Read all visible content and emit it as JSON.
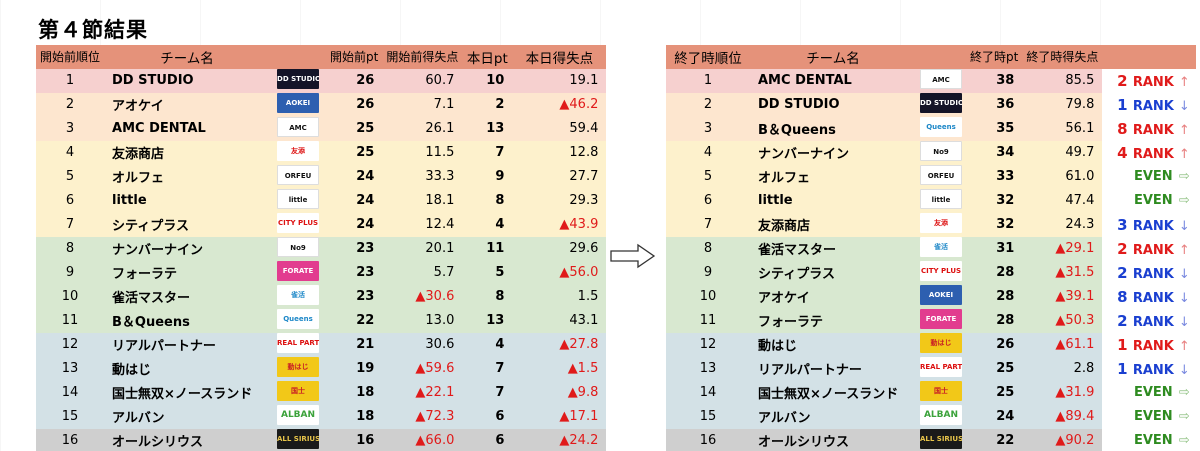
{
  "title": "第４節結果",
  "arrow_icon": "right-arrow-icon",
  "left": {
    "headers": [
      "開始前順位",
      "チーム名",
      "開始前pt",
      "開始前得失点",
      "本日pt",
      "本日得失点"
    ],
    "rows": [
      {
        "rank": "1",
        "team": "DD STUDIO",
        "logo": "DD STUDIO",
        "pt": "26",
        "diff": "60.7",
        "today_pt": "10",
        "today_diff": "19.1"
      },
      {
        "rank": "2",
        "team": "アオケイ",
        "logo": "AOKEI",
        "pt": "26",
        "diff": "7.1",
        "today_pt": "2",
        "today_diff": "▲46.2"
      },
      {
        "rank": "3",
        "team": "AMC DENTAL",
        "logo": "AMC",
        "pt": "25",
        "diff": "26.1",
        "today_pt": "13",
        "today_diff": "59.4"
      },
      {
        "rank": "4",
        "team": "友添商店",
        "logo": "友添",
        "pt": "25",
        "diff": "11.5",
        "today_pt": "7",
        "today_diff": "12.8"
      },
      {
        "rank": "5",
        "team": "オルフェ",
        "logo": "ORFEU",
        "pt": "24",
        "diff": "33.3",
        "today_pt": "9",
        "today_diff": "27.7"
      },
      {
        "rank": "6",
        "team": "little",
        "logo": "little",
        "pt": "24",
        "diff": "18.1",
        "today_pt": "8",
        "today_diff": "29.3"
      },
      {
        "rank": "7",
        "team": "シティプラス",
        "logo": "CITY PLUS",
        "pt": "24",
        "diff": "12.4",
        "today_pt": "4",
        "today_diff": "▲43.9"
      },
      {
        "rank": "8",
        "team": "ナンバーナイン",
        "logo": "No9",
        "pt": "23",
        "diff": "20.1",
        "today_pt": "11",
        "today_diff": "29.6"
      },
      {
        "rank": "9",
        "team": "フォーラテ",
        "logo": "FORATE",
        "pt": "23",
        "diff": "5.7",
        "today_pt": "5",
        "today_diff": "▲56.0"
      },
      {
        "rank": "10",
        "team": "雀活マスター",
        "logo": "雀活",
        "pt": "23",
        "diff": "▲30.6",
        "today_pt": "8",
        "today_diff": "1.5"
      },
      {
        "rank": "11",
        "team": "B＆Queens",
        "logo": "Queens",
        "pt": "22",
        "diff": "13.0",
        "today_pt": "13",
        "today_diff": "43.1"
      },
      {
        "rank": "12",
        "team": "リアルパートナー",
        "logo": "REAL PARTNER",
        "pt": "21",
        "diff": "30.6",
        "today_pt": "4",
        "today_diff": "▲27.8"
      },
      {
        "rank": "13",
        "team": "動はじ",
        "logo": "動はじ",
        "pt": "19",
        "diff": "▲59.6",
        "today_pt": "7",
        "today_diff": "▲1.5"
      },
      {
        "rank": "14",
        "team": "国士無双×ノースランド",
        "logo": "国士",
        "pt": "18",
        "diff": "▲22.1",
        "today_pt": "7",
        "today_diff": "▲9.8"
      },
      {
        "rank": "15",
        "team": "アルバン",
        "logo": "ALBAN",
        "pt": "18",
        "diff": "▲72.3",
        "today_pt": "6",
        "today_diff": "▲17.1"
      },
      {
        "rank": "16",
        "team": "オールシリウス",
        "logo": "ALL SIRIUS",
        "pt": "16",
        "diff": "▲66.0",
        "today_pt": "6",
        "today_diff": "▲24.2"
      }
    ]
  },
  "right": {
    "headers": [
      "終了時順位",
      "チーム名",
      "終了時pt",
      "終了時得失点"
    ],
    "rows": [
      {
        "rank": "1",
        "team": "AMC DENTAL",
        "logo": "AMC",
        "pt": "38",
        "diff": "85.5",
        "change_num": "2",
        "change_text": "RANK",
        "arrow": "↑"
      },
      {
        "rank": "2",
        "team": "DD STUDIO",
        "logo": "DD STUDIO",
        "pt": "36",
        "diff": "79.8",
        "change_num": "1",
        "change_text": "RANK",
        "arrow": "↓"
      },
      {
        "rank": "3",
        "team": "B＆Queens",
        "logo": "Queens",
        "pt": "35",
        "diff": "56.1",
        "change_num": "8",
        "change_text": "RANK",
        "arrow": "↑"
      },
      {
        "rank": "4",
        "team": "ナンバーナイン",
        "logo": "No9",
        "pt": "34",
        "diff": "49.7",
        "change_num": "4",
        "change_text": "RANK",
        "arrow": "↑"
      },
      {
        "rank": "5",
        "team": "オルフェ",
        "logo": "ORFEU",
        "pt": "33",
        "diff": "61.0",
        "change_num": "",
        "change_text": "EVEN",
        "arrow": "⇨"
      },
      {
        "rank": "6",
        "team": "little",
        "logo": "little",
        "pt": "32",
        "diff": "47.4",
        "change_num": "",
        "change_text": "EVEN",
        "arrow": "⇨"
      },
      {
        "rank": "7",
        "team": "友添商店",
        "logo": "友添",
        "pt": "32",
        "diff": "24.3",
        "change_num": "3",
        "change_text": "RANK",
        "arrow": "↓"
      },
      {
        "rank": "8",
        "team": "雀活マスター",
        "logo": "雀活",
        "pt": "31",
        "diff": "▲29.1",
        "change_num": "2",
        "change_text": "RANK",
        "arrow": "↑"
      },
      {
        "rank": "9",
        "team": "シティプラス",
        "logo": "CITY PLUS",
        "pt": "28",
        "diff": "▲31.5",
        "change_num": "2",
        "change_text": "RANK",
        "arrow": "↓"
      },
      {
        "rank": "10",
        "team": "アオケイ",
        "logo": "AOKEI",
        "pt": "28",
        "diff": "▲39.1",
        "change_num": "8",
        "change_text": "RANK",
        "arrow": "↓"
      },
      {
        "rank": "11",
        "team": "フォーラテ",
        "logo": "FORATE",
        "pt": "28",
        "diff": "▲50.3",
        "change_num": "2",
        "change_text": "RANK",
        "arrow": "↓"
      },
      {
        "rank": "12",
        "team": "動はじ",
        "logo": "動はじ",
        "pt": "26",
        "diff": "▲61.1",
        "change_num": "1",
        "change_text": "RANK",
        "arrow": "↑"
      },
      {
        "rank": "13",
        "team": "リアルパートナー",
        "logo": "REAL PARTNER",
        "pt": "25",
        "diff": "2.8",
        "change_num": "1",
        "change_text": "RANK",
        "arrow": "↓"
      },
      {
        "rank": "14",
        "team": "国士無双×ノースランド",
        "logo": "国士",
        "pt": "25",
        "diff": "▲31.9",
        "change_num": "",
        "change_text": "EVEN",
        "arrow": "⇨"
      },
      {
        "rank": "15",
        "team": "アルバン",
        "logo": "ALBAN",
        "pt": "24",
        "diff": "▲89.4",
        "change_num": "",
        "change_text": "EVEN",
        "arrow": "⇨"
      },
      {
        "rank": "16",
        "team": "オールシリウス",
        "logo": "ALL SIRIUS",
        "pt": "22",
        "diff": "▲90.2",
        "change_num": "",
        "change_text": "EVEN",
        "arrow": "⇨"
      }
    ]
  }
}
